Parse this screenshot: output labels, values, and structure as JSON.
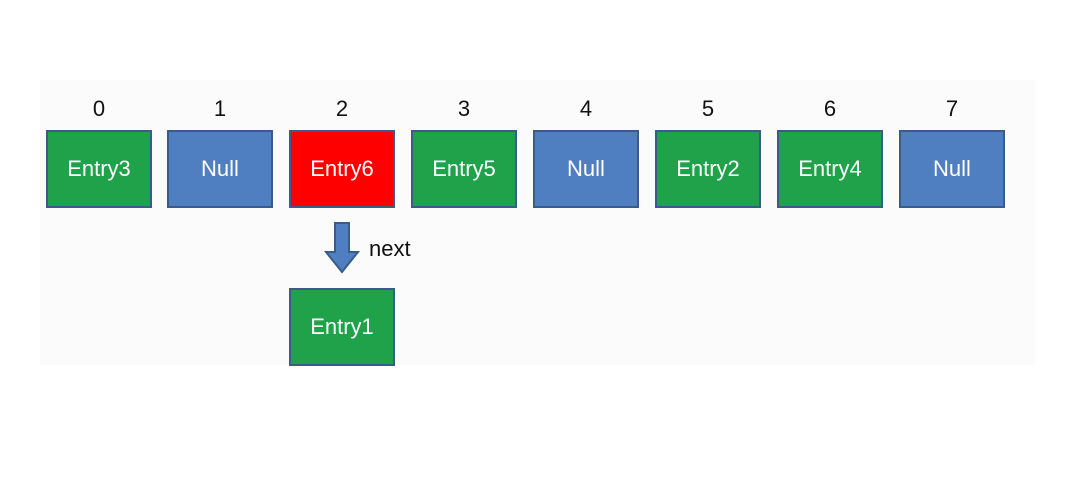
{
  "colors": {
    "occupied": "#1fa24a",
    "empty": "#4f7fc0",
    "collision": "#ff0000",
    "arrow": "#4f7fc0"
  },
  "buckets": [
    {
      "index": "0",
      "label": "Entry3",
      "state": "occupied"
    },
    {
      "index": "1",
      "label": "Null",
      "state": "empty"
    },
    {
      "index": "2",
      "label": "Entry6",
      "state": "collision"
    },
    {
      "index": "3",
      "label": "Entry5",
      "state": "occupied"
    },
    {
      "index": "4",
      "label": "Null",
      "state": "empty"
    },
    {
      "index": "5",
      "label": "Entry2",
      "state": "occupied"
    },
    {
      "index": "6",
      "label": "Entry4",
      "state": "occupied"
    },
    {
      "index": "7",
      "label": "Null",
      "state": "empty"
    }
  ],
  "chain": {
    "arrow_label": "next",
    "arrow_icon": "down-arrow-icon",
    "node_label": "Entry1",
    "node_state": "occupied"
  }
}
